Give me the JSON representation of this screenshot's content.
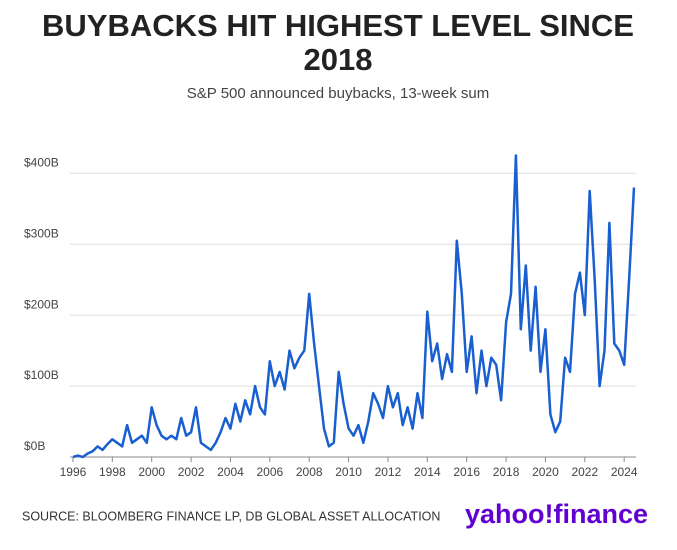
{
  "chart_data": {
    "type": "line",
    "title": "BUYBACKS HIT HIGHEST LEVEL SINCE 2018",
    "subtitle": "S&P 500 announced buybacks, 13-week sum",
    "source": "SOURCE: BLOOMBERG FINANCE LP, DB GLOBAL ASSET ALLOCATION",
    "logo": "yahoo!finance",
    "xlim": [
      1995.85,
      2024.6
    ],
    "ylim": [
      0,
      430
    ],
    "xticks": [
      1996,
      1998,
      2000,
      2002,
      2004,
      2006,
      2008,
      2010,
      2012,
      2014,
      2016,
      2018,
      2020,
      2022,
      2024
    ],
    "yticks": [
      {
        "value": 0,
        "label": "$0B"
      },
      {
        "value": 100,
        "label": "$100B"
      },
      {
        "value": 200,
        "label": "$200B"
      },
      {
        "value": 300,
        "label": "$300B"
      },
      {
        "value": 400,
        "label": "$400B"
      }
    ],
    "grid": true,
    "series": [
      {
        "color": "#1a5fd0",
        "x": [
          1996,
          1996.25,
          1996.5,
          1996.75,
          1997,
          1997.25,
          1997.5,
          1997.75,
          1998,
          1998.25,
          1998.5,
          1998.75,
          1999,
          1999.25,
          1999.5,
          1999.75,
          2000,
          2000.25,
          2000.5,
          2000.75,
          2001,
          2001.25,
          2001.5,
          2001.75,
          2002,
          2002.25,
          2002.5,
          2002.75,
          2003,
          2003.25,
          2003.5,
          2003.75,
          2004,
          2004.25,
          2004.5,
          2004.75,
          2005,
          2005.25,
          2005.5,
          2005.75,
          2006,
          2006.25,
          2006.5,
          2006.75,
          2007,
          2007.25,
          2007.5,
          2007.75,
          2008,
          2008.25,
          2008.5,
          2008.75,
          2009,
          2009.25,
          2009.5,
          2009.75,
          2010,
          2010.25,
          2010.5,
          2010.75,
          2011,
          2011.25,
          2011.5,
          2011.75,
          2012,
          2012.25,
          2012.5,
          2012.75,
          2013,
          2013.25,
          2013.5,
          2013.75,
          2014,
          2014.25,
          2014.5,
          2014.75,
          2015,
          2015.25,
          2015.5,
          2015.75,
          2016,
          2016.25,
          2016.5,
          2016.75,
          2017,
          2017.25,
          2017.5,
          2017.75,
          2018,
          2018.25,
          2018.5,
          2018.75,
          2019,
          2019.25,
          2019.5,
          2019.75,
          2020,
          2020.25,
          2020.5,
          2020.75,
          2021,
          2021.25,
          2021.5,
          2021.75,
          2022,
          2022.25,
          2022.5,
          2022.75,
          2023,
          2023.25,
          2023.5,
          2023.75,
          2024,
          2024.25,
          2024.5
        ],
        "values": [
          0,
          2,
          0,
          5,
          8,
          15,
          10,
          18,
          25,
          20,
          15,
          45,
          20,
          25,
          30,
          20,
          70,
          45,
          30,
          25,
          30,
          25,
          55,
          30,
          35,
          70,
          20,
          15,
          10,
          20,
          35,
          55,
          40,
          75,
          50,
          80,
          60,
          100,
          70,
          60,
          135,
          100,
          120,
          95,
          150,
          125,
          140,
          150,
          230,
          160,
          100,
          40,
          15,
          20,
          120,
          75,
          40,
          30,
          45,
          20,
          50,
          90,
          75,
          55,
          100,
          70,
          90,
          45,
          70,
          40,
          90,
          55,
          205,
          135,
          160,
          110,
          145,
          120,
          305,
          230,
          120,
          170,
          90,
          150,
          100,
          140,
          130,
          80,
          190,
          230,
          425,
          180,
          270,
          150,
          240,
          120,
          180,
          60,
          35,
          50,
          140,
          120,
          230,
          260,
          200,
          375,
          250,
          100,
          150,
          330,
          160,
          150,
          130,
          250,
          380
        ]
      }
    ]
  }
}
